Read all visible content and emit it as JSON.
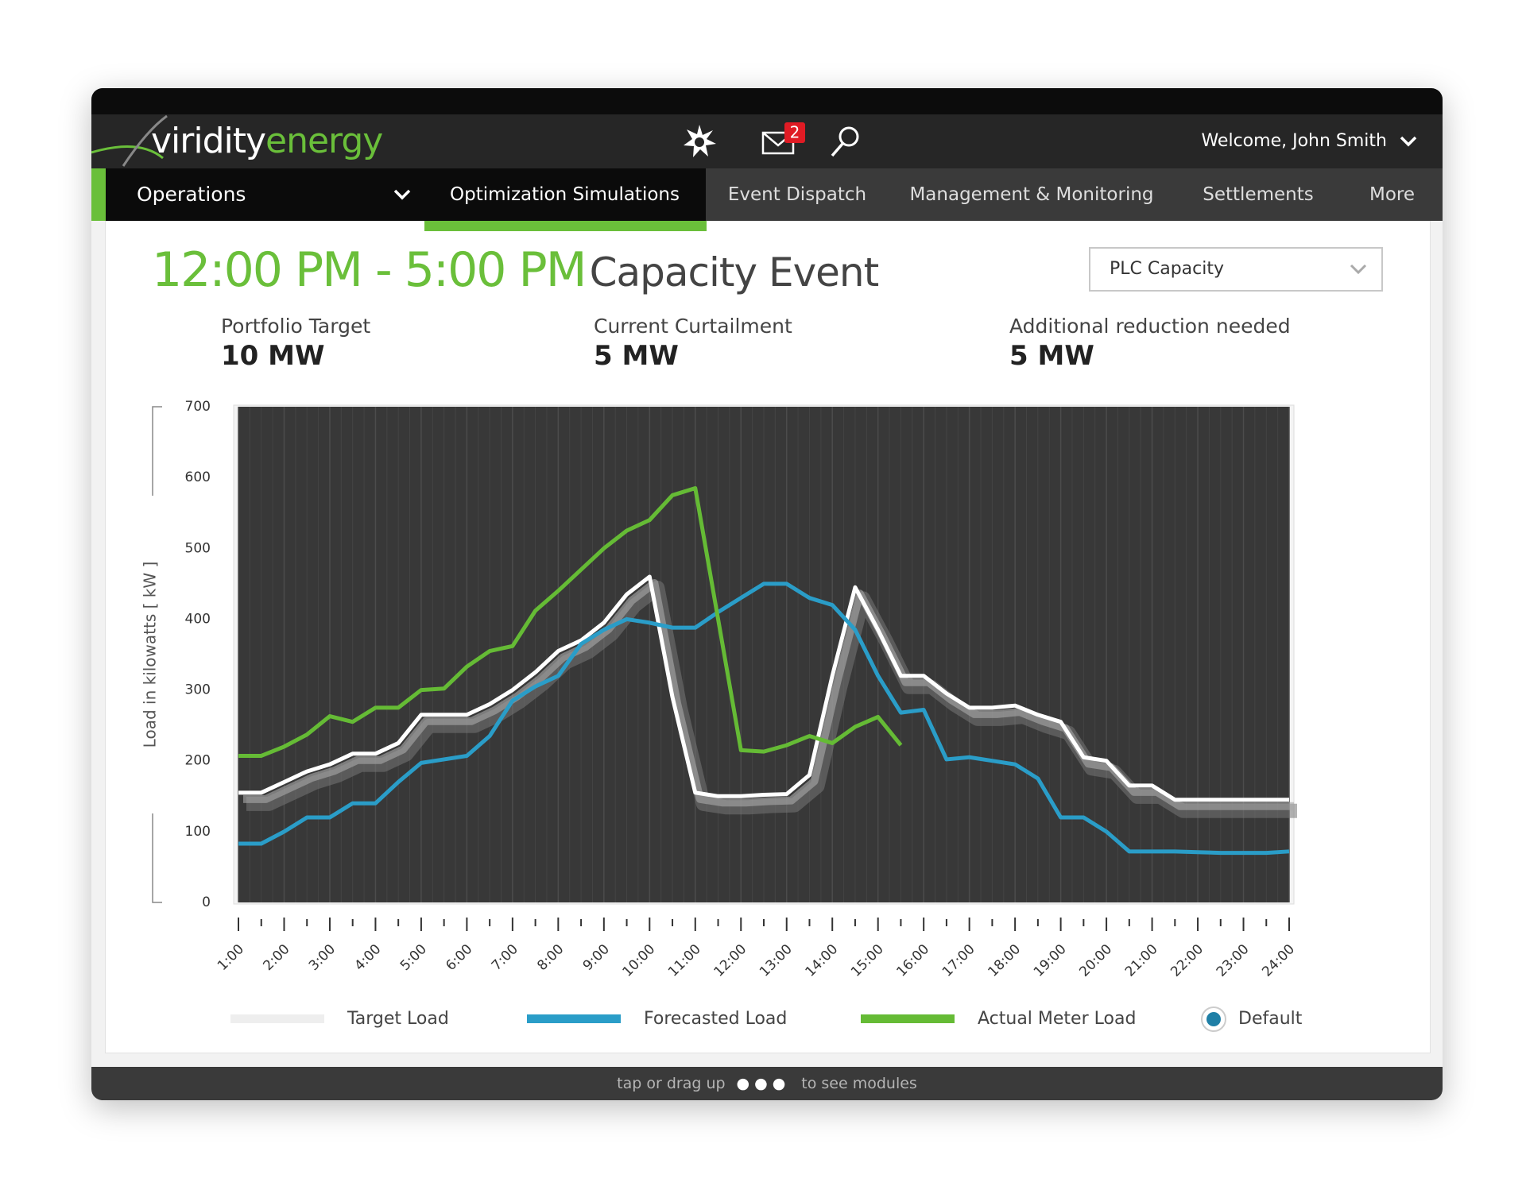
{
  "header": {
    "logo": {
      "first": "viridity",
      "second": "energy"
    },
    "mail_badge": "2",
    "welcome": "Welcome, John Smith"
  },
  "nav": {
    "section": "Operations",
    "tabs": [
      "Optimization Simulations",
      "Event Dispatch",
      "Management & Monitoring",
      "Settlements",
      "More"
    ]
  },
  "event": {
    "time": "12:00 PM - 5:00 PM",
    "title": "Capacity Event",
    "dropdown": "PLC Capacity"
  },
  "stats": [
    {
      "label": "Portfolio Target",
      "value": "10 MW"
    },
    {
      "label": "Current Curtailment",
      "value": "5 MW"
    },
    {
      "label": "Additional reduction needed",
      "value": "5 MW"
    }
  ],
  "chart_data": {
    "type": "line",
    "y_label": "Load in kilowatts [ kW ]",
    "x": [
      1,
      1.5,
      2,
      2.5,
      3,
      3.5,
      4,
      4.5,
      5,
      5.5,
      6,
      6.5,
      7,
      7.5,
      8,
      8.5,
      9,
      9.5,
      10,
      10.5,
      11,
      11.5,
      12,
      12.5,
      13,
      13.5,
      14,
      14.5,
      15,
      15.5,
      16,
      16.5,
      17,
      17.5,
      18,
      18.5,
      19,
      19.5,
      20,
      20.5,
      21,
      21.5,
      22,
      22.5,
      23,
      23.5,
      24
    ],
    "xlim": [
      1,
      24
    ],
    "xticks": [
      {
        "value": 1,
        "label": "1:00"
      },
      {
        "value": 2,
        "label": "2:00"
      },
      {
        "value": 3,
        "label": "3:00"
      },
      {
        "value": 4,
        "label": "4:00"
      },
      {
        "value": 5,
        "label": "5:00"
      },
      {
        "value": 6,
        "label": "6:00"
      },
      {
        "value": 7,
        "label": "7:00"
      },
      {
        "value": 8,
        "label": "8:00"
      },
      {
        "value": 9,
        "label": "9:00"
      },
      {
        "value": 10,
        "label": "10:00"
      },
      {
        "value": 11,
        "label": "11:00"
      },
      {
        "value": 12,
        "label": "12:00"
      },
      {
        "value": 13,
        "label": "13:00"
      },
      {
        "value": 14,
        "label": "14:00"
      },
      {
        "value": 15,
        "label": "15:00"
      },
      {
        "value": 16,
        "label": "16:00"
      },
      {
        "value": 17,
        "label": "17:00"
      },
      {
        "value": 18,
        "label": "18:00"
      },
      {
        "value": 19,
        "label": "19:00"
      },
      {
        "value": 20,
        "label": "20:00"
      },
      {
        "value": 21,
        "label": "21:00"
      },
      {
        "value": 22,
        "label": "22:00"
      },
      {
        "value": 23,
        "label": "23:00"
      },
      {
        "value": 24,
        "label": "24:00"
      }
    ],
    "ylim": [
      0,
      700
    ],
    "yticks": [
      0,
      100,
      200,
      300,
      400,
      500,
      600,
      700
    ],
    "grid": true,
    "series": [
      {
        "name": "Target Load",
        "color": "#ffffff",
        "legend_color": "#eeeeee",
        "shadow": true,
        "values": [
          155,
          155,
          170,
          185,
          195,
          210,
          210,
          225,
          265,
          265,
          265,
          280,
          300,
          325,
          355,
          370,
          395,
          435,
          460,
          290,
          155,
          150,
          150,
          152,
          153,
          180,
          320,
          445,
          385,
          320,
          320,
          295,
          275,
          275,
          278,
          265,
          255,
          205,
          200,
          165,
          165,
          145,
          145,
          145,
          145,
          145,
          145
        ]
      },
      {
        "name": "Forecasted Load",
        "color": "#2a9dc8",
        "values": [
          83,
          83,
          100,
          120,
          120,
          140,
          140,
          170,
          197,
          202,
          207,
          235,
          285,
          305,
          320,
          365,
          385,
          400,
          395,
          388,
          388,
          410,
          430,
          450,
          450,
          430,
          420,
          385,
          320,
          268,
          272,
          202,
          205,
          200,
          195,
          175,
          120,
          120,
          100,
          72,
          72,
          72,
          71,
          70,
          70,
          70,
          72
        ]
      },
      {
        "name": "Actual Meter Load",
        "color": "#65bb35",
        "values": [
          207,
          207,
          220,
          237,
          263,
          255,
          275,
          275,
          300,
          302,
          333,
          355,
          362,
          412,
          440,
          470,
          500,
          525,
          540,
          575,
          585,
          400,
          215,
          213,
          222,
          235,
          225,
          248,
          262,
          222,
          null,
          null,
          null,
          null,
          null,
          null,
          null,
          null,
          null,
          null,
          null,
          null,
          null,
          null,
          null,
          null,
          null
        ]
      }
    ],
    "default_option": "Default"
  },
  "footer": {
    "before": "tap or drag up",
    "after": "to see modules"
  }
}
